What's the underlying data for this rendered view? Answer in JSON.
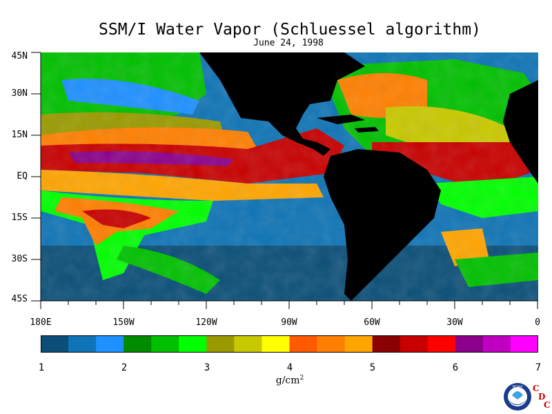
{
  "title": "SSM/I Water Vapor (Schluessel algorithm)",
  "subtitle": "June 24, 1998",
  "y_labels": [
    "45N",
    "30N",
    "15N",
    "EQ",
    "15S",
    "30S",
    "45S"
  ],
  "x_labels": [
    "180E",
    "150W",
    "120W",
    "90W",
    "60W",
    "30W",
    "0"
  ],
  "colorbar": {
    "labels": [
      "1",
      "2",
      "3",
      "4",
      "5",
      "6",
      "7"
    ],
    "units_base": "g/cm",
    "units_exp": "2",
    "colors": [
      "#0b4f78",
      "#0f74b5",
      "#1e90ff",
      "#008b00",
      "#00c000",
      "#00ff00",
      "#9a9a00",
      "#c8c800",
      "#ffff00",
      "#ff5a00",
      "#ff7f00",
      "#ffa500",
      "#8b0000",
      "#c80000",
      "#ff0000",
      "#8b008b",
      "#c000c0",
      "#ff00ff"
    ]
  },
  "logo": {
    "text": "NOAA",
    "cdc": [
      "C",
      "D",
      "C"
    ]
  },
  "map": {
    "land_color": "#000000",
    "ocean_low_color": "#1a6a9a"
  }
}
